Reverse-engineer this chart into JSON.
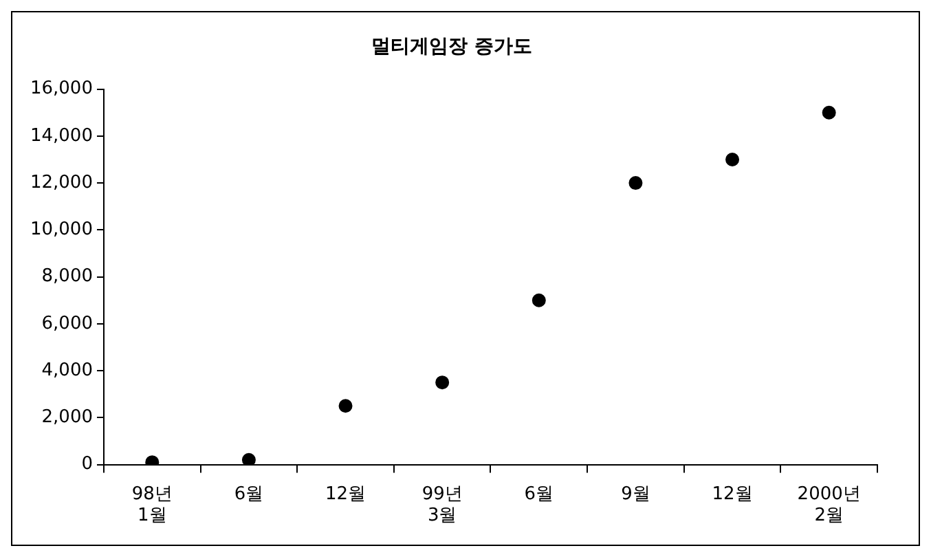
{
  "chart_data": {
    "type": "scatter",
    "title": "멀티게임장 증가도",
    "categories": [
      "98년\n1월",
      "6월",
      "12월",
      "99년\n3월",
      "6월",
      "9월",
      "12월",
      "2000년\n2월"
    ],
    "values": [
      100,
      200,
      2500,
      3500,
      7000,
      12000,
      13000,
      15000
    ],
    "color": "#000000",
    "marker": "circle",
    "ylim": [
      0,
      16000
    ],
    "yticks": [
      {
        "value": 0,
        "label": "0"
      },
      {
        "value": 2000,
        "label": "2,000"
      },
      {
        "value": 4000,
        "label": "4,000"
      },
      {
        "value": 6000,
        "label": "6,000"
      },
      {
        "value": 8000,
        "label": "8,000"
      },
      {
        "value": 10000,
        "label": "10,000"
      },
      {
        "value": 12000,
        "label": "12,000"
      },
      {
        "value": 14000,
        "label": "14,000"
      },
      {
        "value": 16000,
        "label": "16,000"
      }
    ],
    "grid": false,
    "legend": false
  }
}
